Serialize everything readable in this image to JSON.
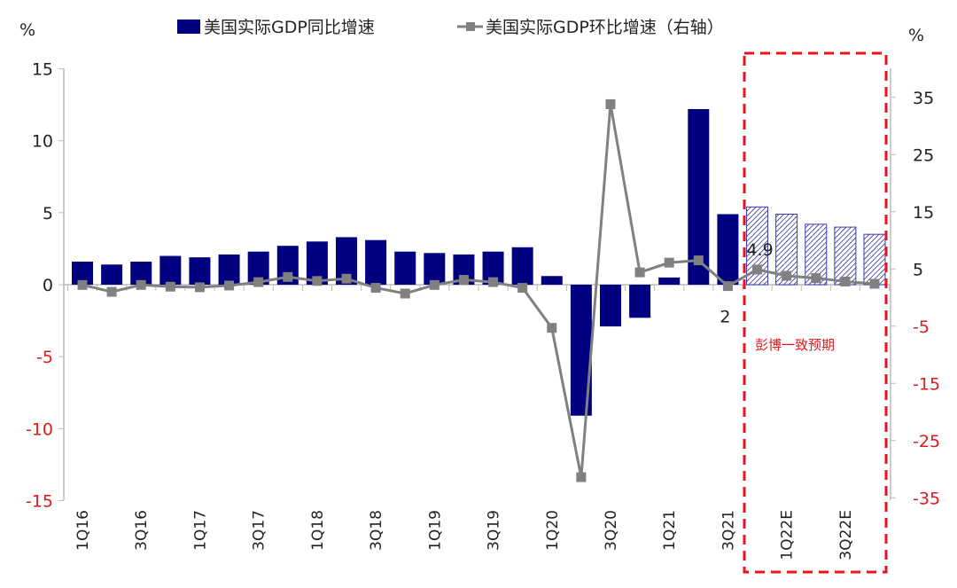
{
  "chart_data": {
    "type": "bar+line",
    "legend_position": "top",
    "left_axis": {
      "unit_label": "%",
      "ylim": [
        -15,
        15
      ],
      "ticks": [
        "15",
        "10",
        "5",
        "0",
        "-5",
        "-10",
        "-15"
      ]
    },
    "right_axis": {
      "unit_label": "%",
      "ticks": [
        "35",
        "25",
        "15",
        "5",
        "-5",
        "-15",
        "-25",
        "-35"
      ]
    },
    "categories": [
      "1Q16",
      "2Q16",
      "3Q16",
      "4Q16",
      "1Q17",
      "2Q17",
      "3Q17",
      "4Q17",
      "1Q18",
      "2Q18",
      "3Q18",
      "4Q18",
      "1Q19",
      "2Q19",
      "3Q19",
      "4Q19",
      "1Q20",
      "2Q20",
      "3Q20",
      "4Q20",
      "1Q21",
      "2Q21",
      "3Q21",
      "4Q21",
      "1Q22E",
      "2Q22E",
      "3Q22E",
      "4Q22E"
    ],
    "tick_labels": [
      "1Q16",
      "3Q16",
      "1Q17",
      "3Q17",
      "1Q18",
      "3Q18",
      "1Q19",
      "3Q19",
      "1Q20",
      "3Q20",
      "1Q21",
      "3Q21",
      "1Q22E",
      "3Q22E"
    ],
    "series": [
      {
        "name": "美国实际GDP同比增速",
        "type": "bar",
        "axis": "left",
        "color": "#000080",
        "values": [
          1.6,
          1.4,
          1.6,
          2.0,
          1.9,
          2.1,
          2.3,
          2.7,
          3.0,
          3.3,
          3.1,
          2.3,
          2.2,
          2.1,
          2.3,
          2.6,
          0.6,
          -9.1,
          -2.9,
          -2.3,
          0.5,
          12.2,
          4.9,
          5.4,
          4.9,
          4.2,
          4.0,
          3.5
        ],
        "forecast_from": "4Q21"
      },
      {
        "name": "美国实际GDP环比增速（右轴）",
        "type": "line",
        "axis": "right",
        "color": "#808080",
        "values": [
          2.2,
          1.0,
          2.2,
          1.9,
          1.8,
          2.1,
          2.7,
          3.6,
          2.9,
          3.3,
          1.7,
          0.7,
          2.2,
          3.1,
          2.7,
          1.7,
          -5.3,
          -31.4,
          33.8,
          4.4,
          6.1,
          6.5,
          2.0,
          4.9,
          3.8,
          3.4,
          2.8,
          2.4
        ]
      }
    ],
    "data_labels": [
      {
        "category": "3Q21",
        "text": "2"
      },
      {
        "category": "4Q21",
        "text": "4.9"
      }
    ],
    "annotation": {
      "text": "彭博一致预期",
      "color": "#e0191d"
    }
  }
}
